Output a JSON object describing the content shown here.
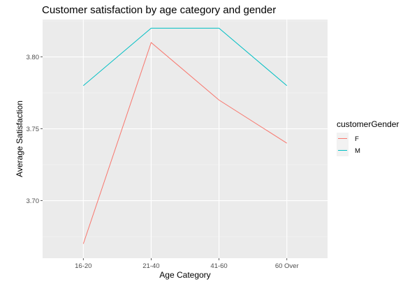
{
  "chart_data": {
    "type": "line",
    "title": "Customer satisfaction by age category and gender",
    "xlabel": "Age Category",
    "ylabel": "Average Satisfaction",
    "categories": [
      "16-20",
      "21-40",
      "41-60",
      "60 Over"
    ],
    "series": [
      {
        "name": "F",
        "values": [
          3.67,
          3.81,
          3.77,
          3.74
        ],
        "color": "#F8766D"
      },
      {
        "name": "M",
        "values": [
          3.78,
          3.82,
          3.82,
          3.78
        ],
        "color": "#00BFC4"
      }
    ],
    "ylim": [
      3.66,
      3.826
    ],
    "yticks": [
      3.7,
      3.75,
      3.8
    ],
    "ytick_labels": [
      "3.70",
      "3.75",
      "3.80"
    ],
    "legend": {
      "title": "customerGender",
      "placement": "right"
    },
    "grid": true,
    "panel_background": "#EBEBEB"
  }
}
